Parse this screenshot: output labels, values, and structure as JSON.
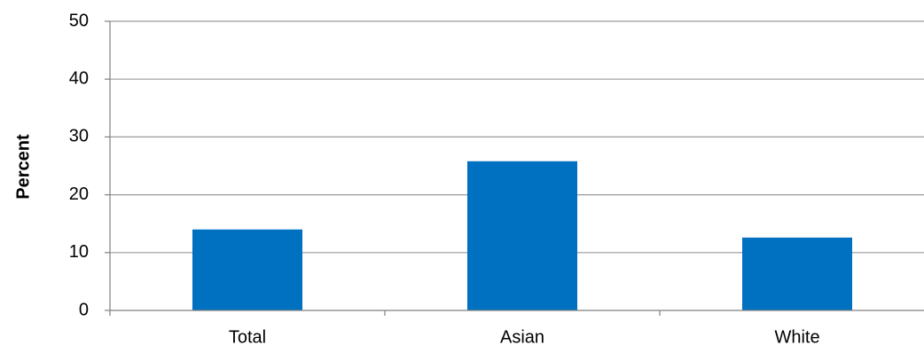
{
  "chart_data": {
    "type": "bar",
    "title": "",
    "xlabel": "",
    "ylabel": "Percent",
    "categories": [
      "Total",
      "Asian",
      "White"
    ],
    "values": [
      14.0,
      25.8,
      12.6
    ],
    "ylim": [
      0,
      50
    ],
    "yticks": [
      0,
      10,
      20,
      30,
      40,
      50
    ],
    "grid": true,
    "legend": "none",
    "bar_color": "#0070C0",
    "grid_color": "#9a9a9a",
    "axis_color": "#808080"
  }
}
